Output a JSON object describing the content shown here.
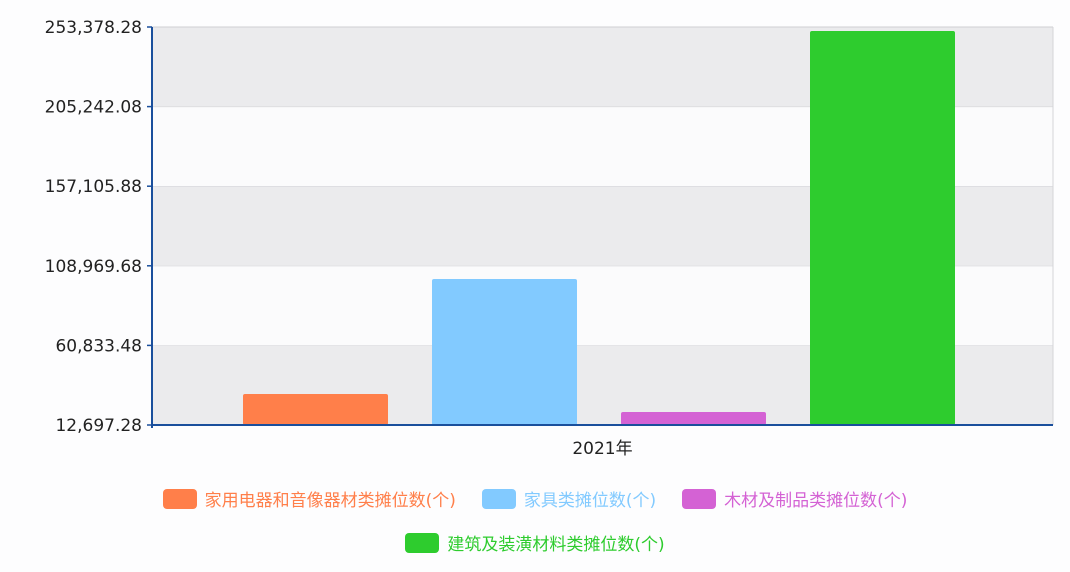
{
  "chart_data": {
    "type": "bar",
    "categories": [
      "2021年"
    ],
    "series": [
      {
        "name": "家用电器和音像器材类摊位数(个)",
        "color": "#ff7f4a",
        "values": [
          31443
        ]
      },
      {
        "name": "家具类摊位数(个)",
        "color": "#82caff",
        "values": [
          100983
        ]
      },
      {
        "name": "木材及制品类摊位数(个)",
        "color": "#d462d4",
        "values": [
          20558
        ]
      },
      {
        "name": "建筑及装潢材料类摊位数(个)",
        "color": "#2ecc2e",
        "values": [
          250949
        ]
      }
    ],
    "yticks": [
      "12,697.28",
      "60,833.48",
      "108,969.68",
      "157,105.88",
      "205,242.08",
      "253,378.28"
    ],
    "ylim": [
      12697.28,
      253378.28
    ],
    "grid": true,
    "legend_position": "bottom"
  }
}
